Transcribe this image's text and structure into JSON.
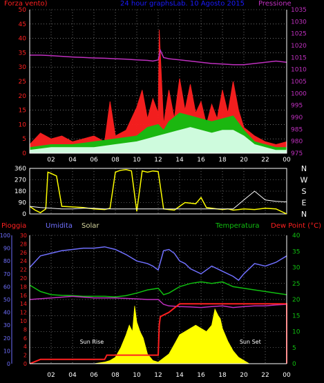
{
  "header": {
    "wind_label": "Forza vento)",
    "title": "24 hour graphsLab. 10 Agosto 2015",
    "pressure_label": "Pressione"
  },
  "bottom_header": {
    "rain_label": "Pioggia",
    "humidity_label": "Umidita",
    "solar_label": "Solar",
    "temperature_label": "Temperatura",
    "dewpoint_label": "Dew Point (°C)"
  },
  "colors": {
    "wind_red": "#ff2020",
    "wind_green": "#10c010",
    "wind_white": "#d8ffe8",
    "pressure": "#c030c0",
    "direction": "#ffff00",
    "direction_avg": "#ffffff",
    "rain": "#ff2020",
    "humidity": "#7070ff",
    "temperature": "#10c010",
    "dewpoint": "#c030c0",
    "solar": "#ffff00",
    "grid": "#ffffff",
    "axis": "#ffffff"
  },
  "chart_data": [
    {
      "type": "area",
      "title": "24 hour graphsLab. 10 Agosto 2015",
      "x_ticks": [
        "02",
        "04",
        "06",
        "08",
        "10",
        "12",
        "14",
        "16",
        "18",
        "20",
        "22",
        "00"
      ],
      "y_left_ticks": [
        "0",
        "5",
        "10",
        "15",
        "20",
        "25",
        "30",
        "35",
        "40",
        "45",
        "50"
      ],
      "y_right_ticks": [
        "975",
        "980",
        "985",
        "990",
        "995",
        "1000",
        "1005",
        "1010",
        "1015",
        "1020",
        "1025",
        "1030",
        "1035"
      ],
      "ylim_left": [
        0,
        50
      ],
      "ylim_right": [
        975,
        1035
      ],
      "xlim": [
        0,
        24
      ],
      "grid": true,
      "series": [
        {
          "name": "Pressione",
          "axis": "right",
          "x": [
            0,
            1,
            2,
            3,
            4,
            5,
            6,
            7,
            8,
            9,
            10,
            11,
            11.5,
            12,
            12.2,
            12.5,
            13,
            14,
            15,
            16,
            17,
            18,
            19,
            20,
            21,
            22,
            23,
            24
          ],
          "values": [
            1016,
            1016,
            1015.8,
            1015.5,
            1015.2,
            1015,
            1014.8,
            1014.7,
            1014.5,
            1014.3,
            1014,
            1013.8,
            1013.5,
            1014,
            1018,
            1015,
            1014.5,
            1014,
            1013.5,
            1013,
            1012.5,
            1012.3,
            1012,
            1012,
            1012.5,
            1013,
            1013.5,
            1013
          ]
        },
        {
          "name": "Forza vento",
          "x": [
            0,
            1,
            2,
            3,
            4,
            5,
            6,
            7,
            7.5,
            8,
            9,
            10,
            10.5,
            11,
            11.5,
            12,
            12.1,
            12.5,
            13,
            13.5,
            14,
            14.5,
            15,
            15.5,
            16,
            16.5,
            17,
            17.5,
            18,
            18.5,
            19,
            19.5,
            20,
            21,
            22,
            23,
            24
          ],
          "values": [
            3,
            7,
            5,
            6,
            4,
            5,
            6,
            4,
            18,
            6,
            8,
            16,
            22,
            12,
            19,
            14,
            43,
            10,
            22,
            12,
            26,
            15,
            24,
            14,
            18,
            10,
            17,
            12,
            22,
            14,
            25,
            15,
            9,
            6,
            4,
            3,
            4
          ]
        },
        {
          "x": [
            0,
            2,
            4,
            6,
            8,
            10,
            11,
            12,
            12.5,
            13,
            14,
            15,
            16,
            17,
            18,
            19,
            20,
            21,
            22,
            23,
            24
          ],
          "values": [
            2,
            3,
            3,
            4,
            5,
            6,
            9,
            10,
            8,
            11,
            14,
            13,
            12,
            11,
            12,
            13,
            8,
            4,
            3,
            2,
            2
          ]
        },
        {
          "x": [
            0,
            2,
            4,
            6,
            8,
            10,
            11,
            12,
            13,
            14,
            15,
            16,
            17,
            18,
            19,
            20,
            21,
            22,
            23,
            24
          ],
          "values": [
            1,
            2,
            2,
            2,
            3,
            4,
            5,
            6,
            7,
            8,
            9,
            8,
            7,
            8,
            8,
            6,
            3,
            2,
            1,
            1
          ]
        }
      ]
    },
    {
      "type": "line",
      "x_ticks": [],
      "y_ticks": [
        "360",
        "270",
        "180",
        "90",
        "0"
      ],
      "y_right_labels": [
        "N",
        "W",
        "S",
        "E",
        "N"
      ],
      "ylim": [
        0,
        360
      ],
      "xlim": [
        0,
        24
      ],
      "grid": true,
      "series": [
        {
          "x": [
            0,
            0.5,
            1,
            1.5,
            1.7,
            2,
            2.5,
            3,
            4,
            5,
            6,
            7,
            7.5,
            8,
            8.3,
            8.5,
            9,
            9.5,
            10,
            10.5,
            11,
            11.5,
            12,
            12.5,
            13,
            13.5,
            14,
            14.5,
            15,
            15.5,
            16,
            16.5,
            17,
            17.5,
            18,
            18.5,
            19,
            19.5,
            20,
            21,
            22,
            23,
            24
          ],
          "values": [
            60,
            30,
            10,
            40,
            330,
            320,
            300,
            60,
            55,
            50,
            40,
            35,
            45,
            330,
            340,
            345,
            350,
            340,
            20,
            340,
            330,
            340,
            335,
            40,
            35,
            30,
            60,
            90,
            85,
            80,
            130,
            50,
            45,
            40,
            35,
            40,
            30,
            35,
            40,
            35,
            45,
            40,
            0
          ]
        },
        {
          "x": [
            0,
            1,
            2,
            3,
            4,
            5,
            6,
            7,
            8,
            9,
            10,
            11,
            12,
            13,
            14,
            15,
            16,
            17,
            18,
            19,
            20,
            21,
            22,
            23,
            24
          ],
          "values": [
            60,
            50,
            45,
            40,
            40,
            45,
            45,
            40,
            40,
            40,
            40,
            40,
            40,
            40,
            40,
            40,
            40,
            40,
            40,
            40,
            110,
            180,
            110,
            100,
            95
          ]
        }
      ]
    },
    {
      "type": "area",
      "x_ticks": [
        "02",
        "04",
        "06",
        "08",
        "10",
        "12",
        "14",
        "16",
        "18",
        "20",
        "22",
        "00"
      ],
      "y_far_left_ticks": [
        "0",
        "10",
        "20",
        "30",
        "40",
        "50",
        "60",
        "70",
        "80",
        "90",
        "100"
      ],
      "y_left_ticks": [
        "0",
        "2",
        "4",
        "6",
        "8",
        "10",
        "12",
        "14",
        "16",
        "18",
        "20",
        "22",
        "24",
        "26",
        "28",
        "30"
      ],
      "y_right_ticks": [
        "0",
        "5",
        "10",
        "15",
        "20",
        "25",
        "30",
        "35",
        "40"
      ],
      "ylim_humidity": [
        0,
        100
      ],
      "ylim_rain": [
        0,
        30
      ],
      "ylim_temperature": [
        0,
        40
      ],
      "xlim": [
        0,
        24
      ],
      "grid": true,
      "annotations": [
        "Sun Rise",
        "Sun Set"
      ],
      "series": [
        {
          "name": "Umidita",
          "x": [
            0,
            1,
            2,
            3,
            4,
            5,
            6,
            7,
            8,
            9,
            10,
            11,
            11.5,
            12,
            12.5,
            13,
            13.5,
            14,
            14.5,
            15,
            16,
            17,
            18,
            19,
            19.5,
            20,
            21,
            22,
            23,
            24
          ],
          "values": [
            75,
            84,
            86,
            88,
            89,
            90,
            90,
            91,
            89,
            85,
            80,
            78,
            76,
            73,
            88,
            89,
            86,
            80,
            78,
            74,
            70,
            76,
            72,
            68,
            65,
            70,
            78,
            76,
            79,
            84
          ]
        },
        {
          "name": "Temperatura",
          "x": [
            0,
            1,
            2,
            3,
            4,
            5,
            6,
            7,
            8,
            9,
            10,
            11,
            12,
            12.5,
            13,
            14,
            15,
            16,
            17,
            18,
            19,
            20,
            21,
            22,
            23,
            24
          ],
          "values": [
            24.5,
            22.5,
            21.5,
            21.3,
            21.2,
            21,
            21,
            21,
            20.8,
            21.2,
            22,
            23,
            23.5,
            21.5,
            22,
            24,
            25,
            25.5,
            25,
            25.5,
            24,
            23.5,
            23,
            22.5,
            22,
            21.5
          ]
        },
        {
          "name": "Dew Point",
          "x": [
            0,
            2,
            4,
            6,
            8,
            10,
            11,
            12,
            12.5,
            13,
            14,
            15,
            16,
            17,
            18,
            19,
            20,
            21,
            22,
            23,
            24
          ],
          "values": [
            20,
            20.5,
            21,
            20.5,
            20.5,
            20.2,
            20,
            20,
            18.5,
            18,
            17.8,
            17.7,
            17.5,
            17.8,
            18,
            17.5,
            17.8,
            18,
            18,
            18.3,
            18.5
          ]
        },
        {
          "name": "Pioggia",
          "x": [
            0,
            0.5,
            1,
            2,
            3,
            4,
            5,
            6,
            7,
            7.2,
            8,
            9,
            10,
            11,
            12,
            12.1,
            12.2,
            13,
            13.5,
            14,
            15,
            16,
            17,
            18,
            19,
            20,
            21,
            22,
            23,
            24,
            24
          ],
          "values": [
            0,
            0.5,
            1,
            1,
            1,
            1,
            1,
            1,
            1,
            2,
            2,
            2,
            2,
            2,
            2,
            9,
            11,
            12,
            13,
            14,
            14,
            14,
            14,
            14,
            14,
            14,
            14,
            14,
            14,
            14,
            0
          ]
        },
        {
          "name": "Solar",
          "x": [
            6,
            7,
            7.5,
            8,
            8.5,
            9,
            9.3,
            9.6,
            9.8,
            10,
            10.3,
            10.6,
            11,
            11.5,
            12,
            13,
            13.5,
            14,
            14.5,
            15,
            15.5,
            16,
            16.5,
            17,
            17.3,
            17.6,
            17.8,
            18,
            18.5,
            19,
            19.5,
            20,
            20.5
          ],
          "values": [
            0,
            0.5,
            1,
            2,
            5,
            9,
            12,
            10,
            18,
            13,
            10,
            8,
            3,
            1,
            0.5,
            3,
            6,
            9,
            10,
            11,
            12,
            11,
            10,
            12,
            17,
            15,
            14,
            11,
            7,
            4,
            2,
            1,
            0
          ]
        }
      ]
    }
  ]
}
